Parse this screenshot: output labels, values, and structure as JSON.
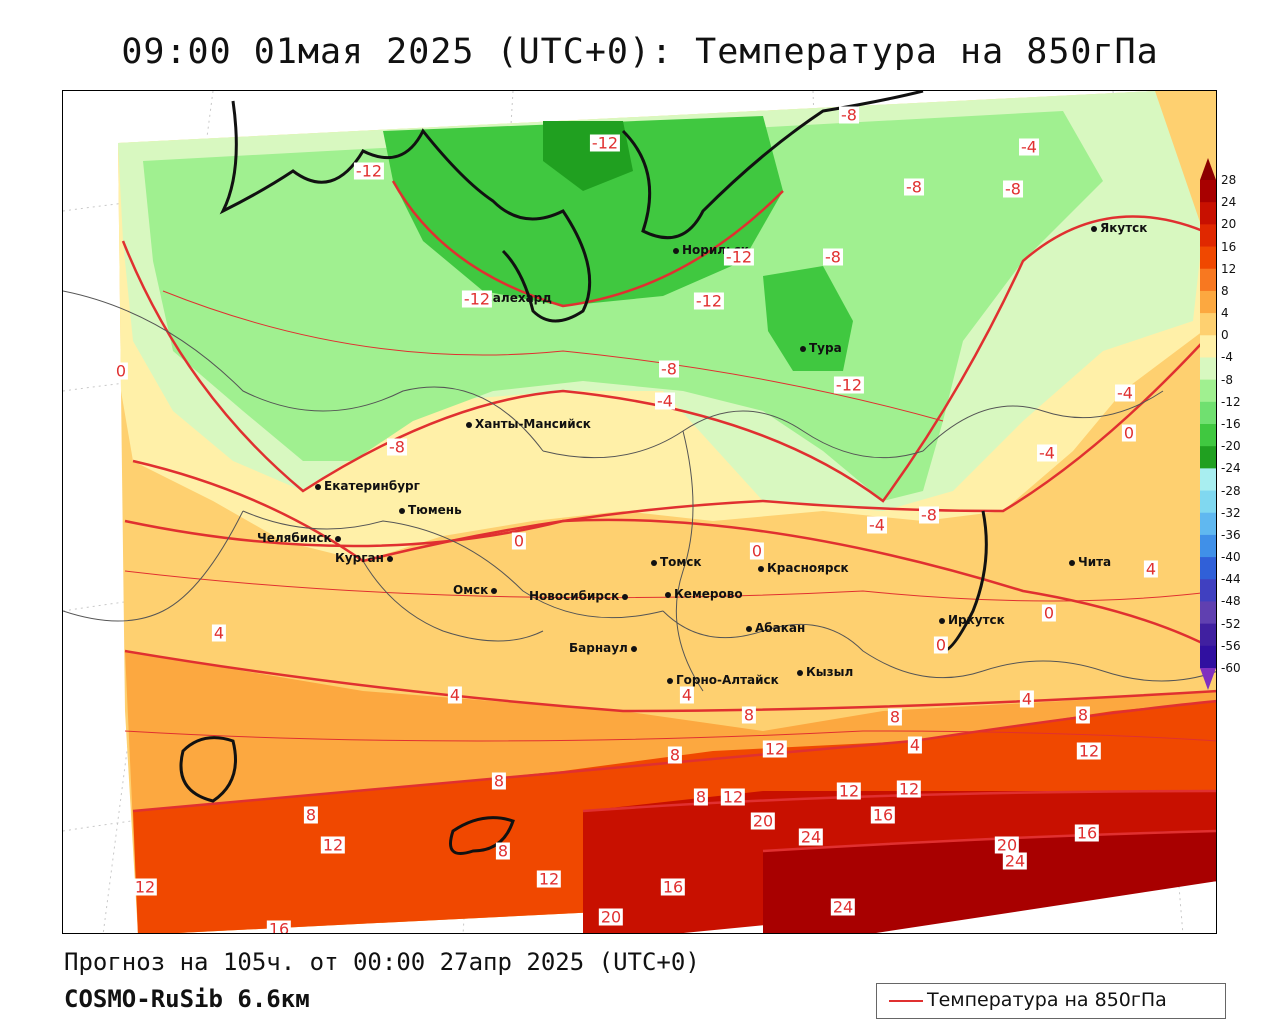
{
  "title": "09:00 01мая 2025 (UTC+0): Температура на 850гПа",
  "footer": {
    "forecast_line": "Прогноз на 105ч. от 00:00 27апр 2025 (UTC+0)",
    "model_line": "COSMO-RuSib 6.6км"
  },
  "legend": {
    "label": "Температура на 850гПа",
    "line_color": "#e03030"
  },
  "colorbar": {
    "labels": [
      "28",
      "24",
      "20",
      "16",
      "12",
      "8",
      "4",
      "0",
      "-4",
      "-8",
      "-12",
      "-16",
      "-20",
      "-24",
      "-28",
      "-32",
      "-36",
      "-40",
      "-44",
      "-48",
      "-52",
      "-56",
      "-60"
    ],
    "colors": [
      "#8b0000",
      "#a80000",
      "#c81000",
      "#e02800",
      "#f04800",
      "#f87820",
      "#fca840",
      "#fed070",
      "#fff0a8",
      "#d8f8c0",
      "#a0f090",
      "#70e070",
      "#40c840",
      "#20a020",
      "#a8eef0",
      "#80d8f0",
      "#60b8f0",
      "#4090e8",
      "#3060d8",
      "#4040c0",
      "#6040b0",
      "#4020a0",
      "#3010a0",
      "#8030c0"
    ]
  },
  "cities": [
    {
      "name": "Норильск"
    },
    {
      "name": "Салехард"
    },
    {
      "name": "Тура"
    },
    {
      "name": "Якутск"
    },
    {
      "name": "Ханты-Мансийск"
    },
    {
      "name": "Екатеринбург"
    },
    {
      "name": "Тюмень"
    },
    {
      "name": "Челябинск"
    },
    {
      "name": "Курган"
    },
    {
      "name": "Томск"
    },
    {
      "name": "Красноярск"
    },
    {
      "name": "Омск"
    },
    {
      "name": "Новосибирск"
    },
    {
      "name": "Кемерово"
    },
    {
      "name": "Абакан"
    },
    {
      "name": "Иркутск"
    },
    {
      "name": "Чита"
    },
    {
      "name": "Барнаул"
    },
    {
      "name": "Горно-Алтайск"
    },
    {
      "name": "Кызыл"
    }
  ],
  "contour_labels": [
    "-12",
    "-12",
    "-8",
    "-4",
    "-8",
    "-8",
    "-8",
    "-12",
    "-12",
    "-12",
    "-12",
    "-8",
    "-8",
    "-4",
    "-8",
    "-4",
    "-4",
    "-4",
    "0",
    "0",
    "0",
    "0",
    "0",
    "0",
    "4",
    "4",
    "4",
    "4",
    "4",
    "4",
    "8",
    "8",
    "8",
    "8",
    "8",
    "8",
    "8",
    "8",
    "12",
    "12",
    "12",
    "12",
    "12",
    "12",
    "12",
    "12",
    "16",
    "16",
    "16",
    "16",
    "20",
    "20",
    "20",
    "24",
    "24",
    "24"
  ]
}
